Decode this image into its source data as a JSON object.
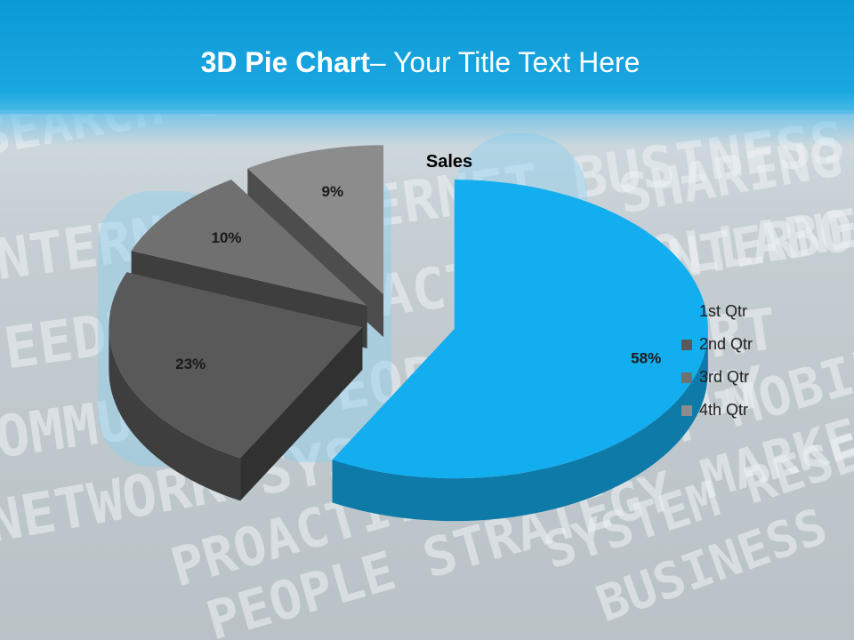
{
  "slide": {
    "title_bold": "3D Pie Chart",
    "title_rest": "– Your Title Text Here"
  },
  "background_words": [
    "SEARCH",
    "INTERNET",
    "FEEDBACK",
    "COMMUNITY",
    "NETWORK",
    "SHARING",
    "INTERNET",
    "PROACTIVE",
    "PEOPLE",
    "SYSTEM",
    "BUSINESS",
    "COLLABORATION",
    "SUPPORT",
    "STRATEGY",
    "RESEARCH",
    "CONTENT",
    "MOBILE",
    "MARKETING",
    "QUALITY",
    "SEO"
  ],
  "colors": {
    "header": "#0b9ad6",
    "qtr1": "#12aef0",
    "qtr2": "#595959",
    "qtr3": "#707070",
    "qtr4": "#8c8c8c"
  },
  "chart_data": {
    "type": "pie",
    "title": "Sales",
    "categories": [
      "1st Qtr",
      "2nd Qtr",
      "3rd Qtr",
      "4th Qtr"
    ],
    "values": [
      58,
      23,
      10,
      9
    ],
    "data_labels": [
      "58%",
      "23%",
      "10%",
      "9%"
    ],
    "style": "3d-exploded",
    "legend_position": "right"
  }
}
